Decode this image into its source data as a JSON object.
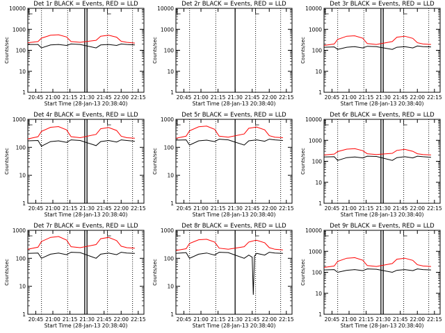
{
  "page": {
    "x_tick_labels": [
      "20:45",
      "21:00",
      "21:15",
      "21:30",
      "21:45",
      "22:00",
      "22:15"
    ],
    "y_tick_labels": [
      "1",
      "10",
      "100",
      "1000",
      "10000"
    ],
    "colors": {
      "events": "#000000",
      "lld": "#ff0000",
      "axes": "#000000",
      "background": "#ffffff"
    }
  },
  "chart_data": [
    {
      "type": "line",
      "title": "Det 1r BLACK = Events, RED = LLD",
      "xlabel": "Start Time (28-Jan-13 20:38:40)",
      "ylabel": "Counts/sec",
      "yscale": "log",
      "ylim": [
        1,
        10000
      ],
      "xlim": [
        "20:38",
        "22:20"
      ],
      "max_ytick": "10000",
      "x": [
        "20:38",
        "20:47",
        "20:50",
        "20:58",
        "21:05",
        "21:12",
        "21:16",
        "21:24",
        "21:38",
        "21:42",
        "21:49",
        "21:56",
        "22:00",
        "22:05",
        "22:12"
      ],
      "series": [
        {
          "name": "Events",
          "values": [
            190,
            190,
            130,
            180,
            190,
            170,
            200,
            190,
            130,
            180,
            190,
            170,
            200,
            190,
            180
          ]
        },
        {
          "name": "LLD",
          "values": [
            230,
            260,
            380,
            520,
            550,
            430,
            260,
            240,
            300,
            470,
            520,
            420,
            270,
            240,
            220
          ]
        }
      ],
      "markers": {
        "dotted_lines": [
          "20:50",
          "21:13",
          "21:48",
          "22:10"
        ],
        "solid_lines": [
          "21:28",
          "21:30"
        ],
        "tick_marks": [
          "20:39",
          "21:48"
        ]
      }
    },
    {
      "type": "line",
      "title": "Det 2r BLACK = Events, RED = LLD",
      "xlabel": "Start Time (28-Jan-13 20:38:40)",
      "ylabel": "Counts/sec",
      "yscale": "log",
      "ylim": [
        1,
        10000
      ],
      "xlim": [
        "20:38",
        "22:20"
      ],
      "max_ytick": "10000",
      "x": [],
      "series": [],
      "markers": {
        "dotted_lines": [
          "20:50",
          "21:13",
          "21:48",
          "22:10"
        ],
        "solid_lines": [
          "21:30"
        ],
        "tick_marks": [
          "20:39",
          "21:48"
        ]
      }
    },
    {
      "type": "line",
      "title": "Det 3r BLACK = Events, RED = LLD",
      "xlabel": "Start Time (28-Jan-13 20:38:40)",
      "ylabel": "Counts/sec",
      "yscale": "log",
      "ylim": [
        1,
        10000
      ],
      "xlim": [
        "20:38",
        "22:20"
      ],
      "max_ytick": "10000",
      "x": [
        "20:38",
        "20:47",
        "20:50",
        "20:58",
        "21:05",
        "21:12",
        "21:16",
        "21:24",
        "21:38",
        "21:42",
        "21:49",
        "21:56",
        "22:00",
        "22:05",
        "22:12"
      ],
      "series": [
        {
          "name": "Events",
          "values": [
            140,
            145,
            110,
            140,
            150,
            130,
            155,
            150,
            110,
            140,
            150,
            130,
            160,
            150,
            145
          ]
        },
        {
          "name": "LLD",
          "values": [
            170,
            200,
            330,
            470,
            490,
            380,
            210,
            190,
            260,
            420,
            470,
            370,
            230,
            200,
            190
          ]
        }
      ],
      "markers": {
        "dotted_lines": [
          "20:50",
          "21:13",
          "21:48",
          "22:10"
        ],
        "solid_lines": [
          "21:28",
          "21:30"
        ],
        "tick_marks": [
          "20:39",
          "21:48"
        ]
      }
    },
    {
      "type": "line",
      "title": "Det 4r BLACK = Events, RED = LLD",
      "xlabel": "Start Time (28-Jan-13 20:38:40)",
      "ylabel": "Counts/sec",
      "yscale": "log",
      "ylim": [
        1,
        1000
      ],
      "xlim": [
        "20:38",
        "22:20"
      ],
      "max_ytick": "1000",
      "x": [
        "20:38",
        "20:47",
        "20:50",
        "20:58",
        "21:05",
        "21:12",
        "21:16",
        "21:24",
        "21:38",
        "21:42",
        "21:49",
        "21:56",
        "22:00",
        "22:05",
        "22:12"
      ],
      "series": [
        {
          "name": "Events",
          "values": [
            170,
            175,
            110,
            160,
            170,
            150,
            185,
            175,
            115,
            160,
            175,
            155,
            185,
            175,
            165
          ]
        },
        {
          "name": "LLD",
          "values": [
            200,
            240,
            370,
            520,
            550,
            420,
            240,
            220,
            290,
            460,
            510,
            400,
            250,
            220,
            210
          ]
        }
      ],
      "markers": {
        "dotted_lines": [
          "20:50",
          "21:13",
          "21:48",
          "22:10"
        ],
        "solid_lines": [
          "21:28",
          "21:30"
        ],
        "tick_marks": [
          "20:39",
          "21:48"
        ]
      }
    },
    {
      "type": "line",
      "title": "Det 5r BLACK = Events, RED = LLD",
      "xlabel": "Start Time (28-Jan-13 20:38:40)",
      "ylabel": "Counts/sec",
      "yscale": "log",
      "ylim": [
        1,
        1000
      ],
      "xlim": [
        "20:38",
        "22:20"
      ],
      "max_ytick": "1000",
      "x": [
        "20:38",
        "20:47",
        "20:50",
        "20:58",
        "21:05",
        "21:12",
        "21:16",
        "21:24",
        "21:38",
        "21:42",
        "21:49",
        "21:56",
        "22:00",
        "22:05",
        "22:12"
      ],
      "series": [
        {
          "name": "Events",
          "values": [
            180,
            185,
            120,
            170,
            180,
            160,
            195,
            185,
            120,
            170,
            185,
            165,
            195,
            185,
            175
          ]
        },
        {
          "name": "LLD",
          "values": [
            210,
            250,
            390,
            540,
            570,
            440,
            250,
            230,
            300,
            480,
            530,
            420,
            260,
            230,
            220
          ]
        }
      ],
      "markers": {
        "dotted_lines": [
          "20:50",
          "21:13",
          "21:48",
          "22:10"
        ],
        "solid_lines": [
          "21:30"
        ],
        "tick_marks": [
          "20:39",
          "21:48"
        ]
      }
    },
    {
      "type": "line",
      "title": "Det 6r BLACK = Events, RED = LLD",
      "xlabel": "Start Time (28-Jan-13 20:38:40)",
      "ylabel": "Counts/sec",
      "yscale": "log",
      "ylim": [
        1,
        10000
      ],
      "xlim": [
        "20:38",
        "22:20"
      ],
      "max_ytick": "10000",
      "x": [
        "20:38",
        "20:47",
        "20:50",
        "20:58",
        "21:05",
        "21:12",
        "21:16",
        "21:24",
        "21:38",
        "21:42",
        "21:49",
        "21:56",
        "22:00",
        "22:05",
        "22:12"
      ],
      "series": [
        {
          "name": "Events",
          "values": [
            160,
            165,
            110,
            150,
            160,
            145,
            175,
            170,
            110,
            150,
            165,
            145,
            175,
            165,
            155
          ]
        },
        {
          "name": "LLD",
          "values": [
            200,
            220,
            290,
            380,
            400,
            320,
            230,
            210,
            240,
            330,
            370,
            300,
            230,
            210,
            200
          ]
        }
      ],
      "markers": {
        "dotted_lines": [
          "20:50",
          "21:13",
          "21:48",
          "22:10"
        ],
        "solid_lines": [
          "21:28",
          "21:30"
        ],
        "tick_marks": [
          "20:39",
          "21:48"
        ]
      }
    },
    {
      "type": "line",
      "title": "Det 7r BLACK = Events, RED = LLD",
      "xlabel": "Start Time (28-Jan-13 20:38:40)",
      "ylabel": "Counts/sec",
      "yscale": "log",
      "ylim": [
        1,
        1000
      ],
      "xlim": [
        "20:38",
        "22:20"
      ],
      "max_ytick": "1000",
      "x": [
        "20:38",
        "20:47",
        "20:50",
        "20:58",
        "21:05",
        "21:12",
        "21:16",
        "21:24",
        "21:38",
        "21:42",
        "21:49",
        "21:56",
        "22:00",
        "22:05",
        "22:12"
      ],
      "series": [
        {
          "name": "Events",
          "values": [
            150,
            155,
            100,
            140,
            155,
            135,
            165,
            160,
            100,
            140,
            155,
            135,
            165,
            155,
            150
          ]
        },
        {
          "name": "LLD",
          "values": [
            210,
            250,
            400,
            560,
            600,
            450,
            260,
            240,
            310,
            500,
            560,
            430,
            270,
            240,
            230
          ]
        }
      ],
      "markers": {
        "dotted_lines": [
          "20:50",
          "21:13",
          "21:48",
          "22:10"
        ],
        "solid_lines": [
          "21:28",
          "21:30"
        ],
        "tick_marks": [
          "20:39",
          "21:48"
        ]
      }
    },
    {
      "type": "line",
      "title": "Det 8r BLACK = Events, RED = LLD",
      "xlabel": "Start Time (28-Jan-13 20:38:40)",
      "ylabel": "Counts/sec",
      "yscale": "log",
      "ylim": [
        1,
        1000
      ],
      "xlim": [
        "20:38",
        "22:20"
      ],
      "max_ytick": "1000",
      "x": [
        "20:38",
        "20:47",
        "20:50",
        "20:58",
        "21:05",
        "21:12",
        "21:16",
        "21:24",
        "21:38",
        "21:42",
        "21:45",
        "21:46",
        "21:47",
        "21:49",
        "21:56",
        "22:00",
        "22:05",
        "22:12"
      ],
      "series": [
        {
          "name": "Events",
          "values": [
            150,
            160,
            100,
            140,
            155,
            130,
            165,
            160,
            100,
            130,
            110,
            5,
            120,
            150,
            130,
            165,
            155,
            150
          ]
        },
        {
          "name": "LLD",
          "values": [
            190,
            220,
            340,
            460,
            480,
            380,
            230,
            210,
            260,
            380,
            410,
            420,
            430,
            440,
            360,
            240,
            210,
            200
          ]
        }
      ],
      "markers": {
        "dotted_lines": [
          "20:50",
          "21:13",
          "21:48",
          "22:10"
        ],
        "solid_lines": [
          "21:30"
        ],
        "tick_marks": [
          "20:39",
          "21:48"
        ]
      }
    },
    {
      "type": "line",
      "title": "Det 9r BLACK = Events, RED = LLD",
      "xlabel": "Start Time (28-Jan-13 20:38:40)",
      "ylabel": "Counts/sec",
      "yscale": "log",
      "ylim": [
        1,
        10000
      ],
      "xlim": [
        "20:38",
        "22:20"
      ],
      "max_ytick": "10000",
      "x": [
        "20:38",
        "20:47",
        "20:50",
        "20:58",
        "21:05",
        "21:12",
        "21:16",
        "21:24",
        "21:38",
        "21:42",
        "21:49",
        "21:56",
        "22:00",
        "22:05",
        "22:12"
      ],
      "series": [
        {
          "name": "Events",
          "values": [
            130,
            135,
            100,
            125,
            135,
            120,
            145,
            140,
            100,
            125,
            135,
            120,
            145,
            135,
            130
          ]
        },
        {
          "name": "LLD",
          "values": [
            170,
            200,
            330,
            470,
            500,
            380,
            210,
            190,
            260,
            420,
            470,
            370,
            230,
            200,
            190
          ]
        }
      ],
      "markers": {
        "dotted_lines": [
          "20:50",
          "21:13",
          "21:48",
          "22:10"
        ],
        "solid_lines": [
          "21:28",
          "21:30"
        ],
        "tick_marks": [
          "20:39",
          "21:48"
        ]
      }
    }
  ]
}
